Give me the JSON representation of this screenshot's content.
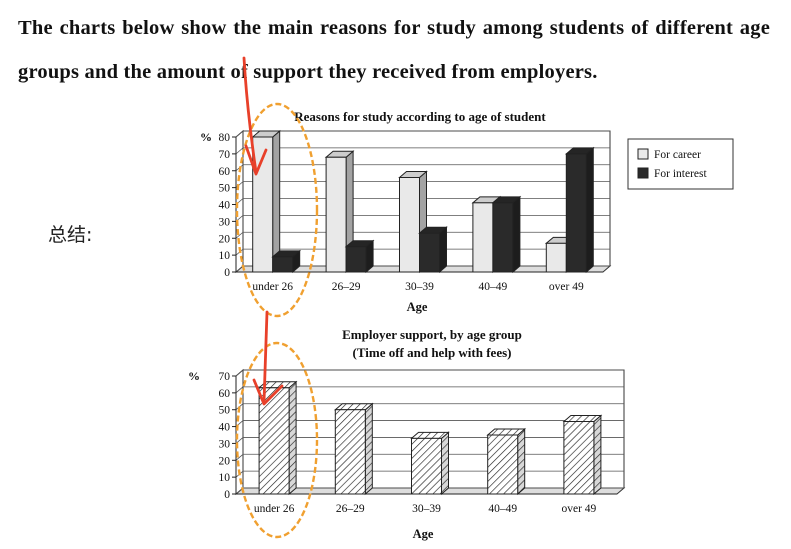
{
  "intro": {
    "text": "The charts below show the main reasons for study among students of different age groups and the amount of support they received from employers."
  },
  "note": {
    "label": "总结:"
  },
  "chart_data": [
    {
      "type": "bar",
      "title": "Reasons for study according to age of student",
      "ylabel": "%",
      "xlabel": "Age",
      "categories": [
        "under 26",
        "26–29",
        "30–39",
        "40–49",
        "over 49"
      ],
      "ylim": [
        0,
        80
      ],
      "yticks": [
        0,
        10,
        20,
        30,
        40,
        50,
        60,
        70,
        80
      ],
      "series": [
        {
          "name": "For career",
          "values": [
            80,
            68,
            56,
            41,
            17
          ],
          "color": "#e9e9e9"
        },
        {
          "name": "For interest",
          "values": [
            9,
            15,
            23,
            41,
            70
          ],
          "color": "#2a2a2a"
        }
      ],
      "legend": "right",
      "grid": true
    },
    {
      "type": "bar",
      "title": "Employer support, by age group",
      "subtitle": "(Time off and help with fees)",
      "ylabel": "%",
      "xlabel": "Age",
      "categories": [
        "under 26",
        "26–29",
        "30–39",
        "40–49",
        "over 49"
      ],
      "ylim": [
        0,
        70
      ],
      "yticks": [
        0,
        10,
        20,
        30,
        40,
        50,
        60,
        70
      ],
      "series": [
        {
          "values": [
            63,
            50,
            33,
            35,
            43
          ],
          "pattern": "hatched"
        }
      ],
      "grid": true
    }
  ],
  "annotation_colors": {
    "arrow": "#e8402a",
    "circle": "#f0a030"
  }
}
